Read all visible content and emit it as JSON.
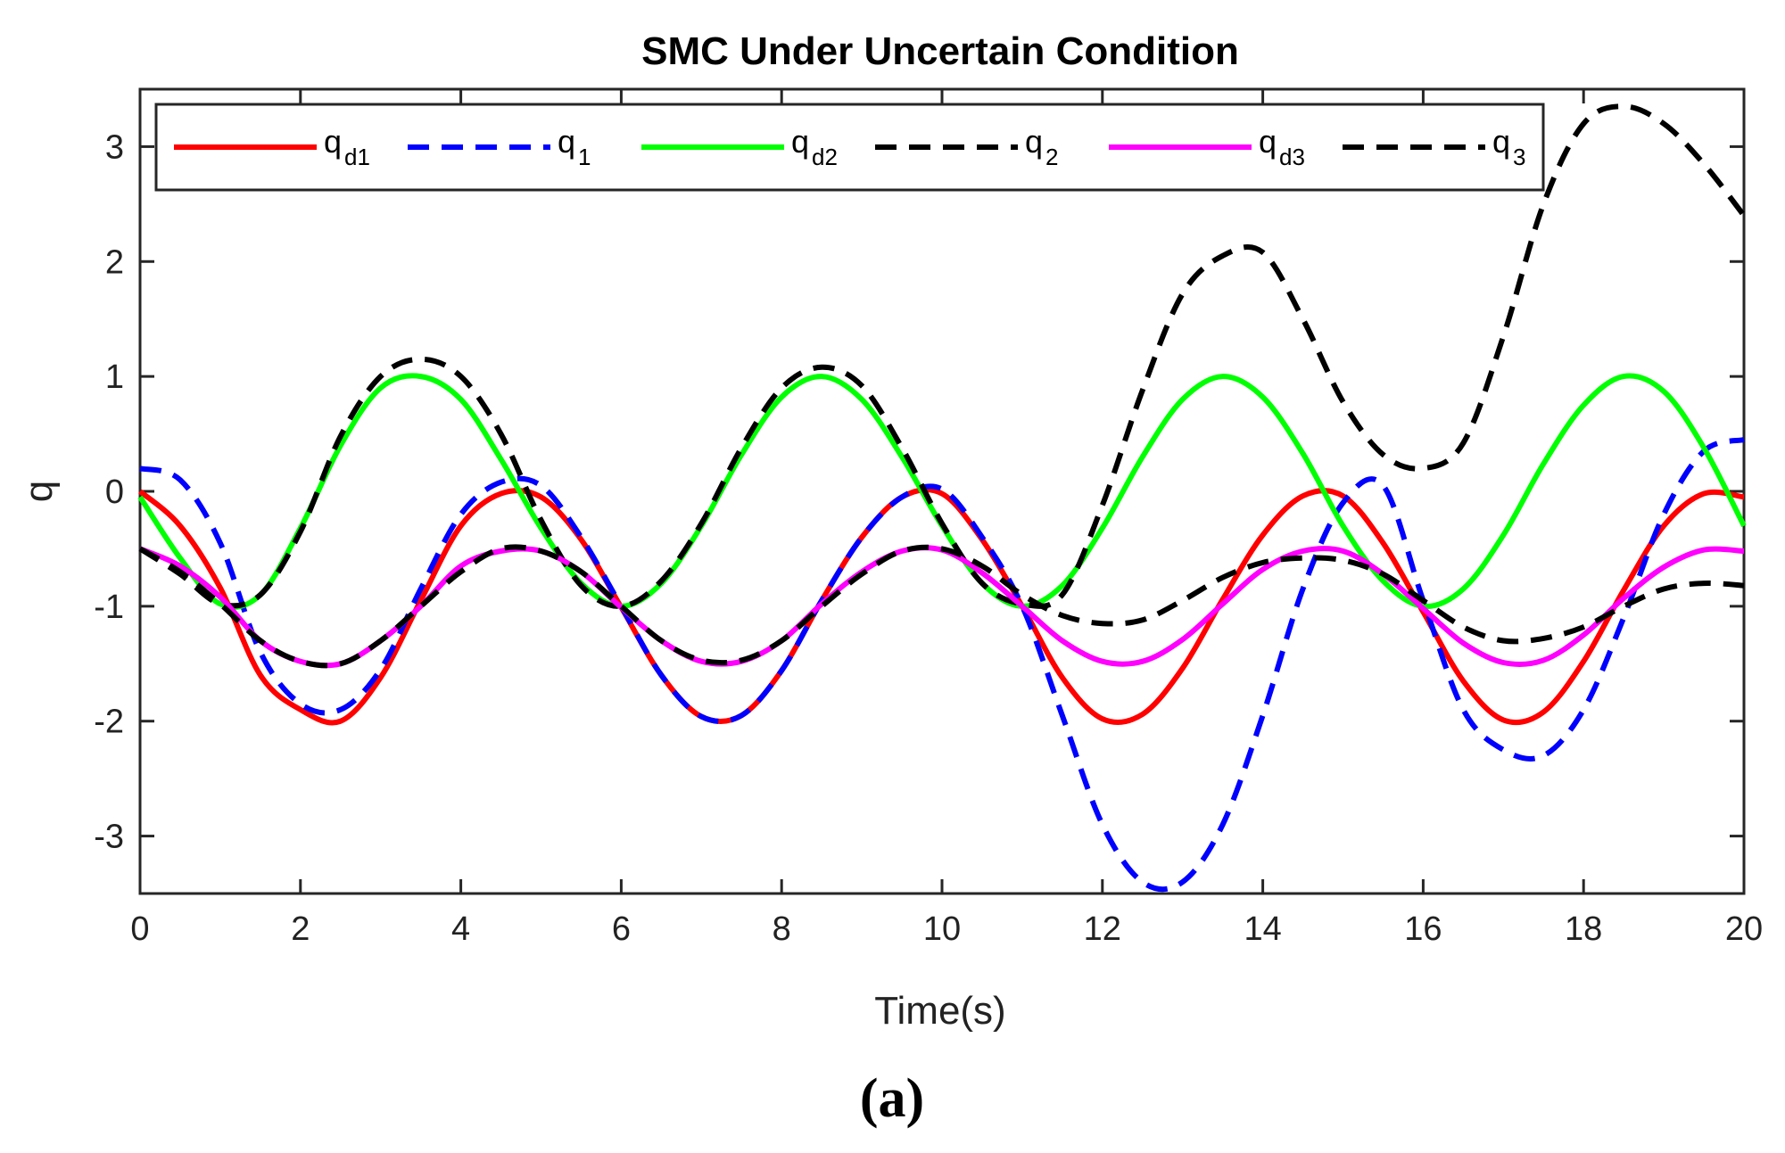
{
  "chart_data": {
    "type": "line",
    "title": "SMC Under Uncertain Condition",
    "xlabel": "Time(s)",
    "ylabel": "q",
    "xlim": [
      0,
      20
    ],
    "ylim": [
      -3.5,
      3.5
    ],
    "xticks": [
      "0",
      "2",
      "4",
      "6",
      "8",
      "10",
      "12",
      "14",
      "16",
      "18",
      "20"
    ],
    "yticks": [
      "3",
      "2",
      "1",
      "0",
      "-1",
      "-2",
      "-3"
    ],
    "legend_position": "top",
    "caption": "(a)",
    "x": [
      0,
      0.5,
      1,
      1.5,
      2,
      2.5,
      3,
      3.5,
      4,
      4.5,
      5,
      5.5,
      6,
      6.5,
      7,
      7.5,
      8,
      8.5,
      9,
      9.5,
      10,
      10.5,
      11,
      11.5,
      12,
      12.5,
      13,
      13.5,
      14,
      14.5,
      15,
      15.5,
      16,
      16.5,
      17,
      17.5,
      18,
      18.5,
      19,
      19.5,
      20
    ],
    "series": [
      {
        "name": "q_d1",
        "label": "q",
        "sub": "d1",
        "color": "#ff0000",
        "dash": "solid",
        "values": [
          0,
          -0.3,
          -0.84,
          -1.6,
          -1.9,
          -2.0,
          -1.62,
          -0.95,
          -0.3,
          -0.02,
          -0.05,
          -0.42,
          -1.01,
          -1.6,
          -1.96,
          -1.95,
          -1.56,
          -0.95,
          -0.4,
          -0.05,
          -0.02,
          -0.42,
          -1.0,
          -1.62,
          -1.98,
          -1.94,
          -1.54,
          -0.94,
          -0.38,
          -0.04,
          -0.04,
          -0.45,
          -1.05,
          -1.65,
          -1.99,
          -1.92,
          -1.48,
          -0.86,
          -0.3,
          -0.02,
          -0.05
        ]
      },
      {
        "name": "q_1",
        "label": "q",
        "sub": "1",
        "color": "#0000ff",
        "dash": "dashed",
        "values": [
          0.2,
          0.1,
          -0.45,
          -1.4,
          -1.85,
          -1.9,
          -1.55,
          -0.85,
          -0.2,
          0.08,
          0.05,
          -0.4,
          -1.0,
          -1.6,
          -1.96,
          -1.95,
          -1.56,
          -0.95,
          -0.4,
          -0.05,
          0.02,
          -0.4,
          -1.0,
          -1.95,
          -2.9,
          -3.4,
          -3.4,
          -2.9,
          -1.95,
          -0.85,
          -0.1,
          0.05,
          -0.95,
          -1.9,
          -2.25,
          -2.3,
          -1.9,
          -1.1,
          -0.2,
          0.35,
          0.45
        ]
      },
      {
        "name": "q_d2",
        "label": "q",
        "sub": "d2",
        "color": "#00ff00",
        "dash": "solid",
        "values": [
          -0.05,
          -0.58,
          -0.98,
          -0.9,
          -0.32,
          0.4,
          0.9,
          1.0,
          0.8,
          0.28,
          -0.32,
          -0.8,
          -1.0,
          -0.8,
          -0.3,
          0.32,
          0.82,
          1.0,
          0.8,
          0.3,
          -0.3,
          -0.8,
          -1.0,
          -0.82,
          -0.32,
          0.3,
          0.8,
          1.0,
          0.82,
          0.33,
          -0.3,
          -0.78,
          -1.0,
          -0.85,
          -0.38,
          0.24,
          0.75,
          1.0,
          0.87,
          0.38,
          -0.3
        ]
      },
      {
        "name": "q_2",
        "label": "q",
        "sub": "2",
        "color": "#000000",
        "dash": "dashed",
        "values": [
          -0.5,
          -0.72,
          -0.98,
          -0.9,
          -0.35,
          0.48,
          1.0,
          1.15,
          1.0,
          0.5,
          -0.25,
          -0.82,
          -1.0,
          -0.78,
          -0.28,
          0.38,
          0.9,
          1.08,
          0.92,
          0.38,
          -0.28,
          -0.8,
          -0.98,
          -0.9,
          -0.12,
          0.88,
          1.72,
          2.05,
          2.08,
          1.5,
          0.78,
          0.32,
          0.2,
          0.42,
          1.35,
          2.5,
          3.2,
          3.35,
          3.2,
          2.85,
          2.4
        ]
      },
      {
        "name": "q_d3",
        "label": "q",
        "sub": "d3",
        "color": "#ff00ff",
        "dash": "solid",
        "values": [
          -0.5,
          -0.65,
          -0.92,
          -1.3,
          -1.48,
          -1.5,
          -1.3,
          -1.0,
          -0.65,
          -0.52,
          -0.52,
          -0.7,
          -1.01,
          -1.3,
          -1.48,
          -1.48,
          -1.3,
          -0.98,
          -0.7,
          -0.52,
          -0.51,
          -0.71,
          -1.0,
          -1.3,
          -1.48,
          -1.48,
          -1.29,
          -0.98,
          -0.68,
          -0.52,
          -0.52,
          -0.72,
          -1.02,
          -1.32,
          -1.49,
          -1.47,
          -1.25,
          -0.93,
          -0.66,
          -0.51,
          -0.52
        ]
      },
      {
        "name": "q_3",
        "label": "q",
        "sub": "3",
        "color": "#000000",
        "dash": "dashed",
        "values": [
          -0.5,
          -0.7,
          -0.98,
          -1.3,
          -1.48,
          -1.5,
          -1.3,
          -1.0,
          -0.7,
          -0.5,
          -0.52,
          -0.7,
          -1.0,
          -1.3,
          -1.47,
          -1.47,
          -1.3,
          -1.0,
          -0.72,
          -0.52,
          -0.5,
          -0.65,
          -0.9,
          -1.08,
          -1.15,
          -1.12,
          -0.95,
          -0.75,
          -0.62,
          -0.58,
          -0.6,
          -0.72,
          -0.95,
          -1.18,
          -1.3,
          -1.28,
          -1.18,
          -1.0,
          -0.85,
          -0.8,
          -0.82
        ]
      }
    ]
  }
}
